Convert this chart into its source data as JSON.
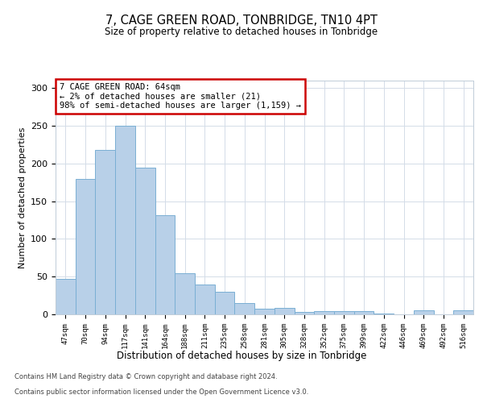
{
  "title": "7, CAGE GREEN ROAD, TONBRIDGE, TN10 4PT",
  "subtitle": "Size of property relative to detached houses in Tonbridge",
  "xlabel": "Distribution of detached houses by size in Tonbridge",
  "ylabel": "Number of detached properties",
  "categories": [
    "47sqm",
    "70sqm",
    "94sqm",
    "117sqm",
    "141sqm",
    "164sqm",
    "188sqm",
    "211sqm",
    "235sqm",
    "258sqm",
    "281sqm",
    "305sqm",
    "328sqm",
    "352sqm",
    "375sqm",
    "399sqm",
    "422sqm",
    "446sqm",
    "469sqm",
    "492sqm",
    "516sqm"
  ],
  "values": [
    47,
    180,
    218,
    250,
    195,
    132,
    55,
    40,
    30,
    15,
    7,
    9,
    3,
    4,
    4,
    4,
    1,
    0,
    5,
    0,
    5
  ],
  "bar_color": "#b8d0e8",
  "bar_edge_color": "#7aafd4",
  "annotation_text": "7 CAGE GREEN ROAD: 64sqm\n← 2% of detached houses are smaller (21)\n98% of semi-detached houses are larger (1,159) →",
  "annotation_box_color": "#ffffff",
  "annotation_border_color": "#cc0000",
  "footer_line1": "Contains HM Land Registry data © Crown copyright and database right 2024.",
  "footer_line2": "Contains public sector information licensed under the Open Government Licence v3.0.",
  "ylim": [
    0,
    310
  ],
  "yticks": [
    0,
    50,
    100,
    150,
    200,
    250,
    300
  ],
  "bg_color": "#ffffff",
  "grid_color": "#d4dce8"
}
